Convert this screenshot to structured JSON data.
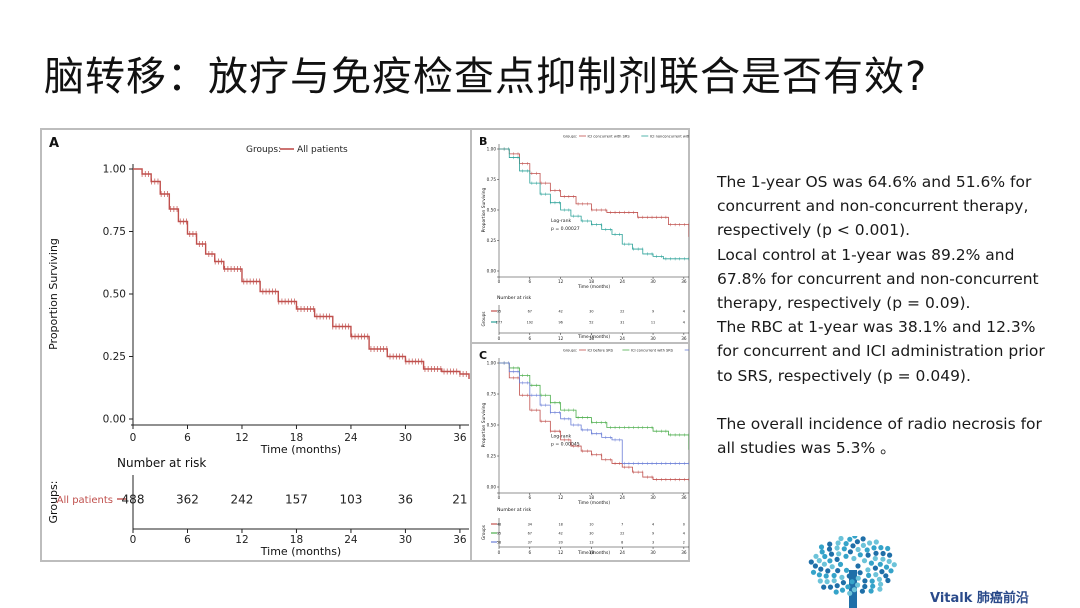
{
  "slide": {
    "title": "脑转移：放疗与免疫检查点抑制剂联合是否有效?"
  },
  "notes": [
    "The 1-year OS was 64.6% and 51.6% for concurrent and non-concurrent therapy, respectively (p < 0.001).",
    "Local control at 1-year was 89.2% and 67.8% for concurrent and non-concurrent therapy, respectively (p = 0.09).",
    "The RBC at 1-year was 38.1% and 12.3% for concurrent and ICI administration prior to SRS, respectively (p = 0.049).",
    "The overall incidence of radio necrosis for all studies was 5.3% 。"
  ],
  "logo": {
    "text": "Vitalk 肺癌前沿",
    "colors": [
      "#1f6fa8",
      "#35a3c9",
      "#6cc3d9"
    ]
  },
  "chart_data": [
    {
      "type": "line",
      "panel": "A",
      "legend_title": "Groups:",
      "legend_position": "top",
      "xlabel": "Time (months)",
      "ylabel": "Proportion Surviving",
      "xlim": [
        0,
        37
      ],
      "ylim": [
        0,
        1.0
      ],
      "x_ticks": [
        0,
        6,
        12,
        18,
        24,
        30,
        36
      ],
      "y_ticks": [
        0.0,
        0.25,
        0.5,
        0.75,
        1.0
      ],
      "series": [
        {
          "name": "All patients",
          "color": "#c0504d",
          "x": [
            0,
            1,
            2,
            3,
            4,
            5,
            6,
            7,
            8,
            9,
            10,
            12,
            14,
            16,
            18,
            20,
            22,
            24,
            26,
            28,
            30,
            32,
            34,
            36,
            37
          ],
          "y": [
            1.0,
            0.98,
            0.95,
            0.9,
            0.84,
            0.79,
            0.74,
            0.7,
            0.66,
            0.63,
            0.6,
            0.55,
            0.51,
            0.47,
            0.44,
            0.41,
            0.37,
            0.33,
            0.28,
            0.25,
            0.23,
            0.2,
            0.19,
            0.18,
            0.16
          ]
        }
      ],
      "risk_table": {
        "title": "Number at risk",
        "label": "Groups:",
        "x": [
          0,
          6,
          12,
          18,
          24,
          30,
          36
        ],
        "rows": [
          {
            "name": "All patients",
            "values": [
              "488",
              "362",
              "242",
              "157",
              "103",
              "36",
              "21"
            ]
          }
        ]
      }
    },
    {
      "type": "line",
      "panel": "B",
      "legend_title": "Groups:",
      "legend_position": "top",
      "xlabel": "Time (months)",
      "ylabel": "Proportion Surviving",
      "xlim": [
        0,
        37
      ],
      "ylim": [
        0,
        1.0
      ],
      "x_ticks": [
        0,
        6,
        12,
        18,
        24,
        30,
        36
      ],
      "y_ticks": [
        0.0,
        0.25,
        0.5,
        0.75,
        1.0
      ],
      "annotation": [
        "Log-rank",
        "p = 0.00027"
      ],
      "series": [
        {
          "name": "ICI concurrent with SRS",
          "color": "#c0504d",
          "x": [
            0,
            2,
            4,
            6,
            8,
            10,
            12,
            15,
            18,
            21,
            24,
            27,
            30,
            33,
            36,
            37
          ],
          "y": [
            1.0,
            0.96,
            0.88,
            0.8,
            0.72,
            0.66,
            0.61,
            0.55,
            0.5,
            0.48,
            0.48,
            0.44,
            0.44,
            0.38,
            0.38,
            0.28
          ]
        },
        {
          "name": "ICI nonconcurrent with SRS",
          "color": "#2aa198",
          "x": [
            0,
            2,
            4,
            6,
            8,
            10,
            12,
            14,
            16,
            18,
            20,
            22,
            24,
            26,
            28,
            30,
            32,
            34,
            36,
            37
          ],
          "y": [
            1.0,
            0.93,
            0.82,
            0.72,
            0.63,
            0.56,
            0.5,
            0.45,
            0.41,
            0.38,
            0.34,
            0.3,
            0.22,
            0.18,
            0.14,
            0.12,
            0.1,
            0.1,
            0.1,
            0.1
          ]
        }
      ],
      "risk_table": {
        "title": "Number at risk",
        "label": "Groups",
        "x": [
          0,
          6,
          12,
          18,
          24,
          30,
          36
        ],
        "rows": [
          {
            "name": "ICI concurrent with SRS",
            "values": [
              "95",
              "67",
              "42",
              "30",
              "22",
              "9",
              "4"
            ]
          },
          {
            "name": "ICI nonconcurrent with SRS",
            "values": [
              "277",
              "192",
              "96",
              "52",
              "31",
              "11",
              "4"
            ]
          }
        ]
      }
    },
    {
      "type": "line",
      "panel": "C",
      "legend_title": "Groups:",
      "legend_position": "top",
      "xlabel": "Time (months)",
      "ylabel": "Proportion Surviving",
      "xlim": [
        0,
        37
      ],
      "ylim": [
        0,
        1.0
      ],
      "x_ticks": [
        0,
        6,
        12,
        18,
        24,
        30,
        36
      ],
      "y_ticks": [
        0.0,
        0.25,
        0.5,
        0.75,
        1.0
      ],
      "annotation": [
        "Log-rank",
        "p = 0.00045"
      ],
      "series": [
        {
          "name": "ICI before SRS",
          "color": "#c0504d",
          "x": [
            0,
            2,
            4,
            6,
            8,
            10,
            12,
            14,
            16,
            18,
            20,
            22,
            24,
            26,
            28,
            30,
            32,
            34,
            36,
            37
          ],
          "y": [
            1.0,
            0.88,
            0.74,
            0.62,
            0.53,
            0.45,
            0.38,
            0.33,
            0.29,
            0.26,
            0.22,
            0.19,
            0.16,
            0.12,
            0.08,
            0.06,
            0.06,
            0.06,
            0.06,
            0.06
          ]
        },
        {
          "name": "ICI concurrent with SRS",
          "color": "#4cae4c",
          "x": [
            0,
            2,
            4,
            6,
            8,
            10,
            12,
            15,
            18,
            21,
            24,
            27,
            30,
            33,
            36,
            37
          ],
          "y": [
            1.0,
            0.96,
            0.9,
            0.82,
            0.74,
            0.68,
            0.62,
            0.56,
            0.52,
            0.48,
            0.48,
            0.48,
            0.45,
            0.42,
            0.42,
            0.3
          ]
        },
        {
          "name": "ICI after SRS",
          "color": "#6b7fd7",
          "x": [
            0,
            2,
            4,
            6,
            8,
            10,
            12,
            14,
            16,
            18,
            20,
            22,
            24,
            26,
            30,
            36,
            37
          ],
          "y": [
            1.0,
            0.93,
            0.84,
            0.74,
            0.66,
            0.6,
            0.55,
            0.5,
            0.46,
            0.43,
            0.4,
            0.38,
            0.19,
            0.19,
            0.19,
            0.19,
            0.19
          ]
        }
      ],
      "risk_table": {
        "title": "Number at risk",
        "label": "Groups",
        "x": [
          0,
          6,
          12,
          18,
          24,
          30,
          36
        ],
        "rows": [
          {
            "name": "ICI before SRS",
            "values": [
              "48",
              "34",
              "18",
              "10",
              "7",
              "4",
              "0"
            ]
          },
          {
            "name": "ICI concurrent with SRS",
            "values": [
              "95",
              "67",
              "42",
              "30",
              "22",
              "9",
              "4"
            ]
          },
          {
            "name": "ICI after SRS",
            "values": [
              "58",
              "37",
              "20",
              "13",
              "8",
              "3",
              "2"
            ]
          }
        ]
      }
    }
  ]
}
